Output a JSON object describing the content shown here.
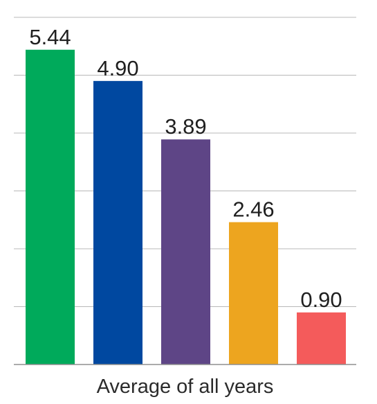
{
  "chart_data": {
    "type": "bar",
    "title": "",
    "xlabel": "",
    "ylabel": "",
    "categories": [
      "Average of all years"
    ],
    "ylim": [
      0,
      6
    ],
    "grid": true,
    "series": [
      {
        "value": 5.44,
        "value_label": "5.44",
        "color": "#00AA5B"
      },
      {
        "value": 4.9,
        "value_label": "4.90",
        "color": "#0048A0"
      },
      {
        "value": 3.89,
        "value_label": "3.89",
        "color": "#5E4586"
      },
      {
        "value": 2.46,
        "value_label": "2.46",
        "color": "#EDA51F"
      },
      {
        "value": 0.9,
        "value_label": "0.90",
        "color": "#F45B5B"
      }
    ]
  }
}
